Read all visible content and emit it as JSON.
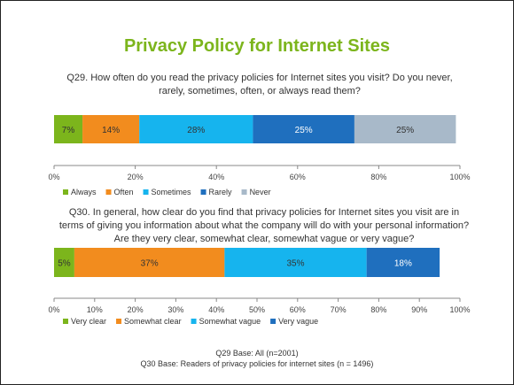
{
  "title": "Privacy Policy for Internet Sites",
  "colors": {
    "title": "#7cb51c",
    "axis": "#888888",
    "segment_colors_1": [
      "#7cb51c",
      "#f28c1e",
      "#16b4ee",
      "#1f6fbe",
      "#a8b9c9"
    ],
    "segment_colors_2": [
      "#7cb51c",
      "#f28c1e",
      "#16b4ee",
      "#1f6fbe"
    ],
    "label_colors_1": [
      "#333333",
      "#333333",
      "#333333",
      "#ffffff",
      "#333333"
    ],
    "label_colors_2": [
      "#333333",
      "#333333",
      "#333333",
      "#ffffff"
    ]
  },
  "chart_data": [
    {
      "type": "bar",
      "stacked": true,
      "orientation": "horizontal",
      "question": "Q29. How often do you read the privacy policies for Internet sites you visit? Do you never, rarely, sometimes, often, or always read them?",
      "categories": [
        "Always",
        "Often",
        "Sometimes",
        "Rarely",
        "Never"
      ],
      "values": [
        7,
        14,
        28,
        25,
        25
      ],
      "value_labels": [
        "7%",
        "14%",
        "28%",
        "25%",
        "25%"
      ],
      "xlim": [
        0,
        100
      ],
      "ticks": [
        "0%",
        "20%",
        "40%",
        "60%",
        "80%",
        "100%"
      ],
      "legend": "bottom"
    },
    {
      "type": "bar",
      "stacked": true,
      "orientation": "horizontal",
      "question": "Q30. In general, how clear do you find that privacy policies for Internet sites you visit are in terms of giving you information about what the company will do with your personal information? Are they very clear, somewhat clear, somewhat vague or very vague?",
      "categories": [
        "Very clear",
        "Somewhat clear",
        "Somewhat vague",
        "Very vague"
      ],
      "values": [
        5,
        37,
        35,
        18
      ],
      "value_labels": [
        "5%",
        "37%",
        "35%",
        "18%"
      ],
      "xlim": [
        0,
        100
      ],
      "ticks": [
        "0%",
        "10%",
        "20%",
        "30%",
        "40%",
        "50%",
        "60%",
        "70%",
        "80%",
        "90%",
        "100%"
      ],
      "legend": "bottom"
    }
  ],
  "footnotes": [
    "Q29 Base: All (n=2001)",
    "Q30 Base: Readers of privacy policies for internet sites (n = 1496)"
  ]
}
